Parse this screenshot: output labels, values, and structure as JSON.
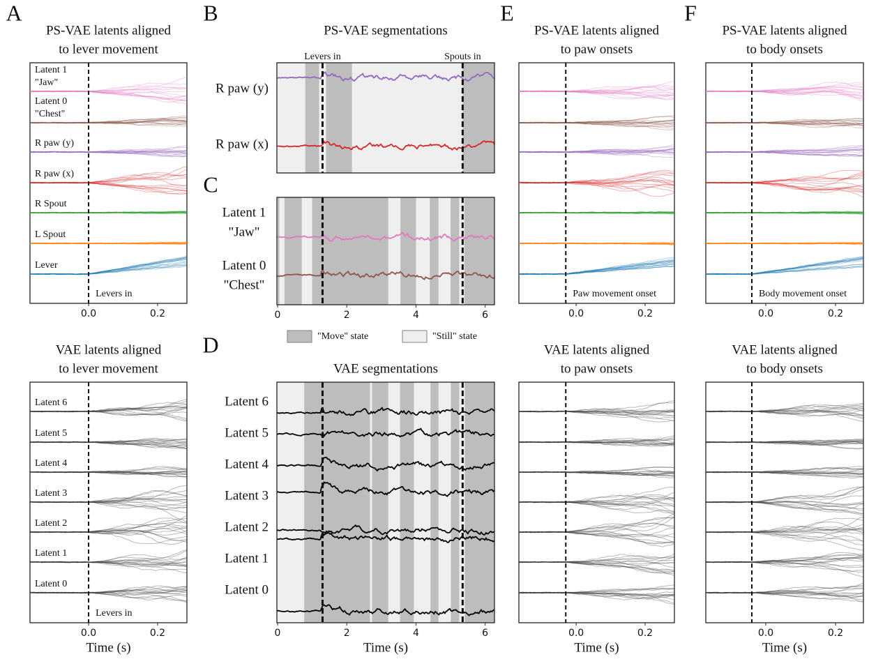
{
  "letters": [
    "A",
    "B",
    "C",
    "D",
    "E",
    "F"
  ],
  "ps_rows": [
    {
      "label": [
        "Latent 1",
        "\"Jaw\""
      ],
      "color": "#e377c2"
    },
    {
      "label": [
        "Latent 0",
        "\"Chest\""
      ],
      "color": "#8c564b"
    },
    {
      "label": [
        "R paw (y)"
      ],
      "color": "#9467bd"
    },
    {
      "label": [
        "R paw (x)"
      ],
      "color": "#d62728"
    },
    {
      "label": [
        "R Spout"
      ],
      "color": "#2ca02c"
    },
    {
      "label": [
        "L Spout"
      ],
      "color": "#ff7f0e"
    },
    {
      "label": [
        "Lever"
      ],
      "color": "#1f77b4"
    }
  ],
  "vae_rows": {
    "labels": [
      "Latent 6",
      "Latent 5",
      "Latent 4",
      "Latent 3",
      "Latent 2",
      "Latent 1",
      "Latent 0"
    ],
    "color": "#3a3a3a"
  },
  "aligned": [
    {
      "title": [
        "PS-VAE latents aligned",
        "to lever movement"
      ],
      "kind": "ps",
      "row_labels": true,
      "xlim": [
        -0.17,
        0.285
      ],
      "xticks": [
        {
          "value": 0,
          "label": "0.0"
        },
        0.2
      ],
      "event_x": 0,
      "annotation": "Levers in"
    },
    {
      "title": [
        "VAE latents aligned",
        "to lever movement"
      ],
      "kind": "vae",
      "row_labels": true,
      "xlim": [
        -0.17,
        0.285
      ],
      "xticks": [
        {
          "value": 0,
          "label": "0.0"
        },
        0.2
      ],
      "event_x": 0,
      "annotation": "Levers in",
      "xlabel": "Time (s)"
    },
    {
      "title": [
        "PS-VAE latents aligned",
        "to paw onsets"
      ],
      "kind": "ps",
      "row_labels": false,
      "xlim": [
        -0.166,
        0.285
      ],
      "xticks": [
        {
          "value": 0,
          "label": "0.0"
        },
        0.2
      ],
      "event_x": -0.03,
      "annotation": "Paw movement onset"
    },
    {
      "title": [
        "VAE latents aligned",
        "to paw onsets"
      ],
      "kind": "vae",
      "row_labels": false,
      "xlim": [
        -0.166,
        0.285
      ],
      "xticks": [
        {
          "value": 0,
          "label": "0.0"
        },
        0.2
      ],
      "event_x": -0.03,
      "xlabel": "Time (s)"
    },
    {
      "title": [
        "PS-VAE latents aligned",
        "to body onsets"
      ],
      "kind": "ps",
      "row_labels": false,
      "xlim": [
        -0.172,
        0.28
      ],
      "xticks": [
        {
          "value": 0,
          "label": "0.0"
        },
        0.2
      ],
      "event_x": -0.04,
      "annotation": "Body movement onset"
    },
    {
      "title": [
        "VAE latents aligned",
        "to body onsets"
      ],
      "kind": "vae",
      "row_labels": false,
      "xlim": [
        -0.172,
        0.28
      ],
      "xticks": [
        {
          "value": 0,
          "label": "0.0"
        },
        0.2
      ],
      "event_x": -0.04,
      "xlabel": "Time (s)"
    }
  ],
  "segmentations": [
    {
      "title": "PS-VAE segmentations",
      "rows": [
        {
          "label": [
            "R paw (y)"
          ],
          "color": "#9467bd"
        },
        {
          "label": [
            "R paw (x)"
          ],
          "color": "#d62728"
        }
      ],
      "xlim": [
        -0.02,
        6.27
      ],
      "move_segments": [
        [
          0.8,
          1.2
        ],
        [
          1.4,
          2.15
        ],
        [
          5.35,
          6.27
        ]
      ],
      "events": [
        {
          "x": 1.3,
          "label": "Levers in"
        },
        {
          "x": 5.35,
          "label": "Spouts in"
        }
      ]
    },
    {
      "rows": [
        {
          "label": [
            "Latent 1",
            "\"Jaw\""
          ],
          "color": "#e377c2"
        },
        {
          "label": [
            "Latent 0",
            "\"Chest\""
          ],
          "color": "#8c564b"
        }
      ],
      "xlim": [
        -0.02,
        6.27
      ],
      "xticks": [
        0,
        2,
        4,
        6
      ],
      "move_segments": [
        [
          0,
          0.05
        ],
        [
          0.2,
          0.7
        ],
        [
          1.0,
          3.2
        ],
        [
          3.55,
          4.0
        ],
        [
          4.4,
          4.65
        ],
        [
          5.0,
          5.25
        ],
        [
          5.4,
          6.27
        ]
      ],
      "events": [
        {
          "x": 1.3
        },
        {
          "x": 5.35
        }
      ]
    },
    {
      "title": "VAE segmentations",
      "rows": [
        {
          "label": [
            "Latent 6"
          ],
          "color": "#000000"
        },
        {
          "label": [
            "Latent 5"
          ],
          "color": "#000000"
        },
        {
          "label": [
            "Latent 4"
          ],
          "color": "#000000"
        },
        {
          "label": [
            "Latent 3"
          ],
          "color": "#000000"
        },
        {
          "label": [
            "Latent 2"
          ],
          "color": "#000000"
        },
        {
          "label": [
            "Latent 1"
          ],
          "color": "#000000"
        },
        {
          "label": [
            "Latent 0"
          ],
          "color": "#000000"
        }
      ],
      "xlim": [
        -0.02,
        6.27
      ],
      "xticks": [
        0,
        2,
        4,
        6
      ],
      "move_segments": [
        [
          0.77,
          2.67
        ],
        [
          2.73,
          3.2
        ],
        [
          3.54,
          3.94
        ],
        [
          4.42,
          4.65
        ],
        [
          5.01,
          5.25
        ],
        [
          5.41,
          6.27
        ]
      ],
      "events": [
        {
          "x": 1.3
        },
        {
          "x": 5.35
        }
      ],
      "xlabel": "Time (s)"
    }
  ],
  "legend": [
    {
      "label": "\"Move\" state",
      "color": "#bdbdbd"
    },
    {
      "label": "\"Still\" state",
      "color": "#efefef"
    }
  ]
}
